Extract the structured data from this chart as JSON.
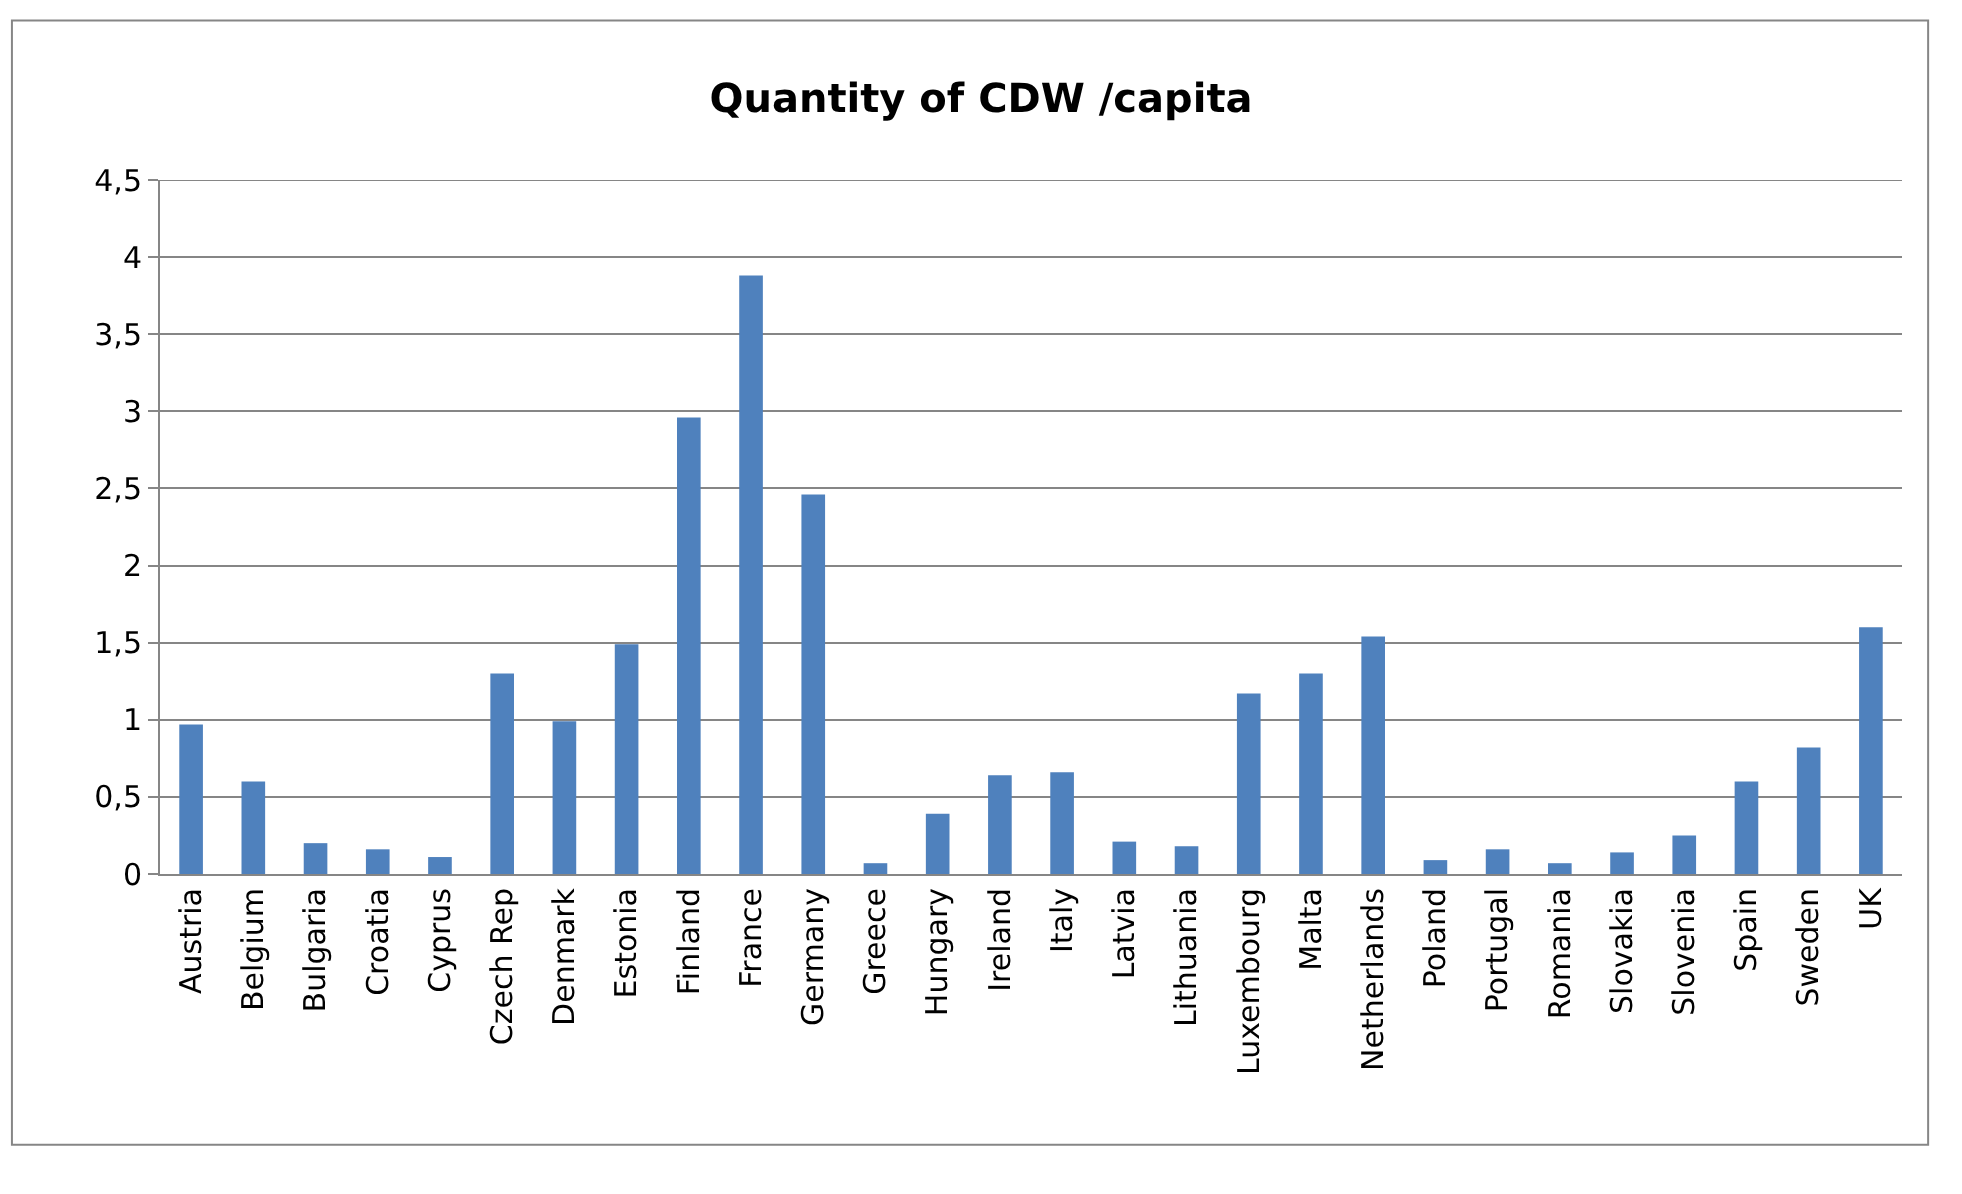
{
  "chart_data": {
    "type": "bar",
    "title": "Quantity of CDW /capita",
    "categories": [
      "Austria",
      "Belgium",
      "Bulgaria",
      "Croatia",
      "Cyprus",
      "Czech Rep",
      "Denmark",
      "Estonia",
      "Finland",
      "France",
      "Germany",
      "Greece",
      "Hungary",
      "Ireland",
      "Italy",
      "Latvia",
      "Lithuania",
      "Luxembourg",
      "Malta",
      "Netherlands",
      "Poland",
      "Portugal",
      "Romania",
      "Slovakia",
      "Slovenia",
      "Spain",
      "Sweden",
      "UK"
    ],
    "values": [
      0.97,
      0.6,
      0.2,
      0.16,
      0.11,
      1.3,
      0.99,
      1.49,
      2.96,
      3.88,
      2.46,
      0.07,
      0.39,
      0.64,
      0.66,
      0.21,
      0.18,
      1.17,
      1.3,
      1.54,
      0.09,
      0.16,
      0.07,
      0.14,
      0.25,
      0.6,
      0.82,
      1.6
    ],
    "color": "#4f81bd",
    "ylim": [
      0,
      4.5
    ],
    "yticks": [
      0,
      {
        "value": 0.5,
        "label": "0,5"
      },
      1,
      {
        "value": 1.5,
        "label": "1,5"
      },
      2,
      {
        "value": 2.5,
        "label": "2,5"
      },
      3,
      {
        "value": 3.5,
        "label": "3,5"
      },
      4,
      {
        "value": 4.5,
        "label": "4,5"
      }
    ],
    "grid": "y"
  }
}
